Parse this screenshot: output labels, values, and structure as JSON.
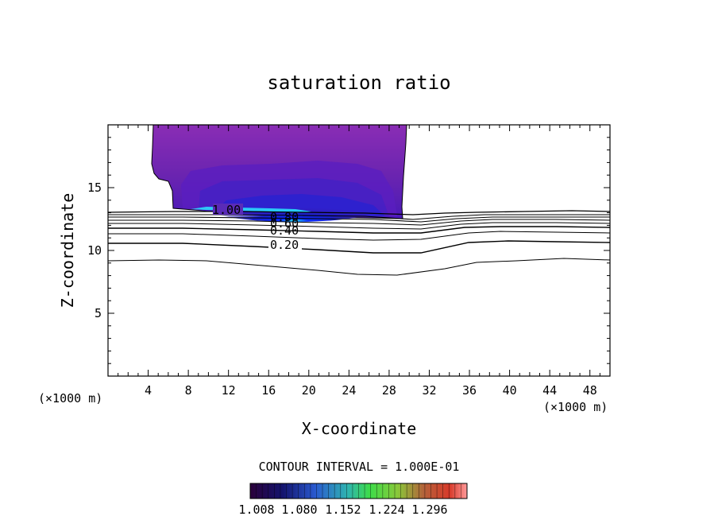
{
  "chart_data": {
    "type": "contour",
    "title": "saturation ratio",
    "xlabel": "X-coordinate",
    "ylabel": "Z-coordinate",
    "x_unit_left": "(×1000 m)",
    "x_unit_right": "(×1000 m)",
    "xlim": [
      0,
      50
    ],
    "ylim": [
      0,
      20
    ],
    "x_ticks": [
      4,
      8,
      12,
      16,
      20,
      24,
      28,
      32,
      36,
      40,
      44,
      48
    ],
    "y_ticks": [
      5,
      10,
      15
    ],
    "contour_interval_text": "CONTOUR INTERVAL = 1.000E-01",
    "contour_labels": [
      {
        "text": "1.00",
        "x": 12.0,
        "z": 13.2
      },
      {
        "text": "0.80",
        "x": 17.5,
        "z": 12.8
      },
      {
        "text": "0.60",
        "x": 17.5,
        "z": 12.2
      },
      {
        "text": "0.40",
        "x": 17.5,
        "z": 11.6
      },
      {
        "text": "0.20",
        "x": 17.5,
        "z": 10.4
      }
    ],
    "supersaturated_region": {
      "color_min": "#3a0a6e",
      "color_mid": "#8a2db5",
      "color_core": "#0a2cff",
      "color_peak": "#29f0ff"
    },
    "colorbar": {
      "labels": [
        "1.008",
        "1.080",
        "1.152",
        "1.224",
        "1.296"
      ],
      "colors": [
        "#2a003a",
        "#1a1a8f",
        "#2a6bd8",
        "#2fbfa0",
        "#3ddc4a",
        "#9ad83a",
        "#c07a3a",
        "#d83a2a",
        "#ff9a9a"
      ]
    }
  }
}
